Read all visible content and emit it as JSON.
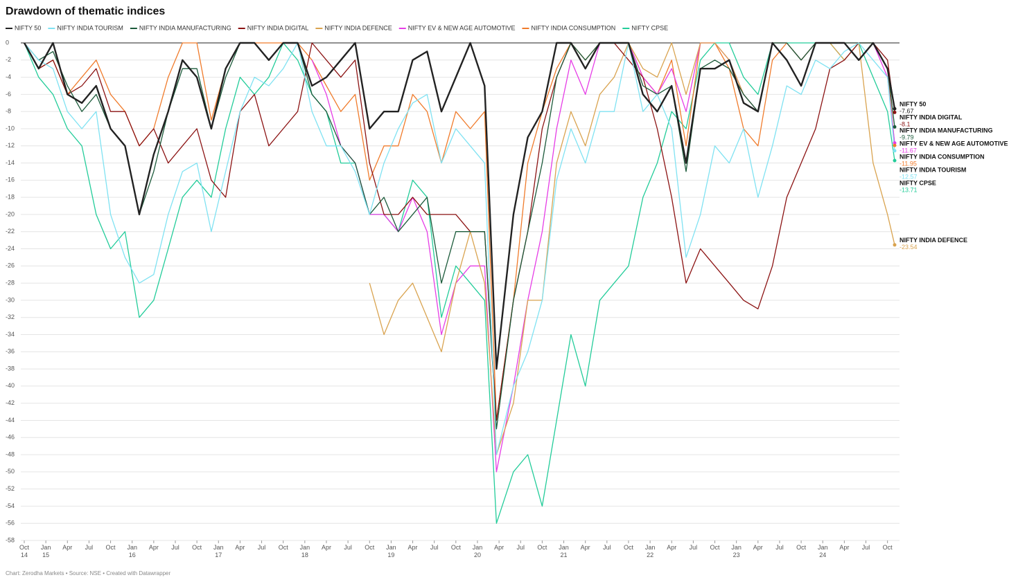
{
  "chart_data": {
    "type": "line",
    "title": "Drawdown of thematic indices",
    "footer": "Chart: Zerodha Markets • Source: NSE • Created with Datawrapper",
    "x": [
      2014.75,
      2014.917,
      2015.083,
      2015.25,
      2015.417,
      2015.583,
      2015.75,
      2015.917,
      2016.083,
      2016.25,
      2016.417,
      2016.583,
      2016.75,
      2016.917,
      2017.083,
      2017.25,
      2017.417,
      2017.583,
      2017.75,
      2017.917,
      2018.083,
      2018.25,
      2018.417,
      2018.583,
      2018.75,
      2018.917,
      2019.083,
      2019.25,
      2019.417,
      2019.583,
      2019.75,
      2019.917,
      2020.083,
      2020.22,
      2020.417,
      2020.583,
      2020.75,
      2020.917,
      2021.083,
      2021.25,
      2021.417,
      2021.583,
      2021.75,
      2021.917,
      2022.083,
      2022.25,
      2022.417,
      2022.583,
      2022.75,
      2022.917,
      2023.083,
      2023.25,
      2023.417,
      2023.583,
      2023.75,
      2023.917,
      2024.083,
      2024.25,
      2024.417,
      2024.583,
      2024.75,
      2024.833
    ],
    "series": [
      {
        "name": "NIFTY 50",
        "color": "#222222",
        "values": [
          0,
          -3,
          0,
          -6,
          -7,
          -5,
          -10,
          -12,
          -20,
          -13,
          -8,
          -2,
          -4,
          -10,
          -3,
          0,
          0,
          -2,
          0,
          0,
          -5,
          -4,
          -2,
          0,
          -10,
          -8,
          -8,
          -2,
          -1,
          -8,
          -4,
          0,
          -5,
          -38,
          -20,
          -11,
          -8,
          0,
          0,
          -3,
          0,
          0,
          0,
          -6,
          -8,
          -5,
          -14,
          -3,
          -3,
          -2,
          -7,
          -8,
          0,
          -2,
          -5,
          0,
          0,
          0,
          -2,
          0,
          -3,
          -7.67
        ]
      },
      {
        "name": "NIFTY INDIA TOURISM",
        "color": "#7fe2f2",
        "values": [
          0,
          -2,
          -3,
          -8,
          -10,
          -8,
          -20,
          -25,
          -28,
          -27,
          -20,
          -15,
          -14,
          -22,
          -15,
          -8,
          -4,
          -5,
          -3,
          0,
          -8,
          -12,
          -12,
          -15,
          -20,
          -14,
          -10,
          -7,
          -6,
          -14,
          -10,
          -12,
          -14,
          -48,
          -40,
          -36,
          -30,
          -16,
          -10,
          -14,
          -8,
          -8,
          0,
          -8,
          -6,
          -10,
          -25,
          -20,
          -12,
          -14,
          -10,
          -18,
          -12,
          -5,
          -6,
          -2,
          -3,
          -1,
          0,
          -2,
          -4,
          -12.57
        ]
      },
      {
        "name": "NIFTY INDIA MANUFACTURING",
        "color": "#1b5a3a",
        "values": [
          0,
          -2,
          -1,
          -5,
          -8,
          -6,
          -10,
          -12,
          -20,
          -15,
          -8,
          -3,
          -3,
          -10,
          -4,
          0,
          0,
          -2,
          0,
          0,
          -6,
          -8,
          -12,
          -14,
          -20,
          -18,
          -22,
          -20,
          -18,
          -28,
          -22,
          -22,
          -22,
          -45,
          -30,
          -22,
          -14,
          -4,
          0,
          -2,
          0,
          0,
          0,
          -5,
          -6,
          -5,
          -15,
          -3,
          -2,
          -3,
          -6,
          -8,
          0,
          0,
          -2,
          0,
          0,
          0,
          0,
          0,
          -3,
          -9.79
        ]
      },
      {
        "name": "NIFTY INDIA DIGITAL",
        "color": "#8b1212",
        "values": [
          0,
          -3,
          -2,
          -6,
          -5,
          -3,
          -8,
          -8,
          -12,
          -10,
          -14,
          -12,
          -10,
          -16,
          -18,
          -8,
          -6,
          -12,
          -10,
          -8,
          0,
          -2,
          -4,
          -2,
          -14,
          -20,
          -20,
          -18,
          -20,
          -20,
          -20,
          -22,
          -22,
          -44,
          -30,
          -22,
          -10,
          -4,
          0,
          -3,
          0,
          0,
          -2,
          -4,
          -10,
          -18,
          -28,
          -24,
          -26,
          -28,
          -30,
          -31,
          -26,
          -18,
          -14,
          -10,
          -3,
          -2,
          0,
          0,
          -2,
          -8.1
        ]
      },
      {
        "name": "NIFTY INDIA DEFENCE",
        "color": "#d9a34f",
        "values": [
          null,
          null,
          null,
          null,
          null,
          null,
          null,
          null,
          null,
          null,
          null,
          null,
          null,
          null,
          null,
          null,
          null,
          null,
          null,
          null,
          null,
          null,
          null,
          null,
          -28,
          -34,
          -30,
          -28,
          -32,
          -36,
          -28,
          -22,
          -28,
          -48,
          -42,
          -30,
          -30,
          -14,
          -8,
          -12,
          -6,
          -4,
          0,
          -3,
          -4,
          0,
          -6,
          0,
          0,
          -2,
          -6,
          -8,
          0,
          0,
          -2,
          0,
          0,
          -2,
          0,
          -14,
          -20,
          -23.54
        ]
      },
      {
        "name": "NIFTY EV & NEW AGE AUTOMOTIVE",
        "color": "#e63ce6",
        "values": [
          null,
          null,
          null,
          null,
          null,
          null,
          null,
          null,
          null,
          null,
          null,
          null,
          null,
          null,
          null,
          null,
          null,
          null,
          null,
          null,
          -2,
          -6,
          -12,
          -14,
          -20,
          -20,
          -22,
          -18,
          -22,
          -34,
          -28,
          -26,
          -26,
          -50,
          -40,
          -30,
          -22,
          -10,
          -2,
          -6,
          0,
          0,
          0,
          -4,
          -6,
          -3,
          -8,
          0,
          0,
          -2,
          -6,
          -8,
          0,
          0,
          -2,
          0,
          0,
          0,
          0,
          0,
          -4,
          -11.67
        ]
      },
      {
        "name": "NIFTY INDIA CONSUMPTION",
        "color": "#f07b2b",
        "values": [
          0,
          -3,
          -2,
          -6,
          -4,
          -2,
          -6,
          -8,
          -12,
          -10,
          -4,
          0,
          0,
          -9,
          -3,
          0,
          0,
          0,
          0,
          0,
          -2,
          -5,
          -8,
          -6,
          -16,
          -12,
          -12,
          -6,
          -8,
          -14,
          -8,
          -10,
          -8,
          -44,
          -30,
          -14,
          -8,
          -3,
          0,
          -2,
          0,
          0,
          0,
          -4,
          -6,
          -2,
          -12,
          0,
          0,
          -3,
          -10,
          -12,
          -2,
          0,
          -2,
          0,
          0,
          0,
          0,
          0,
          -3,
          -11.95
        ]
      },
      {
        "name": "NIFTY CPSE",
        "color": "#22cc99",
        "values": [
          0,
          -4,
          -6,
          -10,
          -12,
          -20,
          -24,
          -22,
          -32,
          -30,
          -24,
          -18,
          -16,
          -18,
          -10,
          -4,
          -6,
          -4,
          0,
          -2,
          -6,
          -8,
          -14,
          -14,
          -20,
          -20,
          -22,
          -16,
          -18,
          -32,
          -26,
          -28,
          -30,
          -56,
          -50,
          -48,
          -54,
          -44,
          -34,
          -40,
          -30,
          -28,
          -26,
          -18,
          -14,
          -8,
          -10,
          -2,
          0,
          0,
          -4,
          -6,
          0,
          0,
          0,
          0,
          0,
          -2,
          0,
          -4,
          -8,
          -13.71
        ]
      }
    ],
    "ylim": [
      -58,
      0
    ],
    "yticks": [
      0,
      -2,
      -4,
      -6,
      -8,
      -10,
      -12,
      -14,
      -16,
      -18,
      -20,
      -22,
      -24,
      -26,
      -28,
      -30,
      -32,
      -34,
      -36,
      -38,
      -40,
      -42,
      -44,
      -46,
      -48,
      -50,
      -52,
      -54,
      -56,
      -58
    ],
    "xlim": [
      2014.75,
      2024.833
    ],
    "xticks": [
      {
        "value": 2014.75,
        "label": "Oct 14"
      },
      {
        "value": 2015,
        "label": "Jan 15"
      },
      {
        "value": 2015.25,
        "label": "Apr"
      },
      {
        "value": 2015.5,
        "label": "Jul"
      },
      {
        "value": 2015.75,
        "label": "Oct"
      },
      {
        "value": 2016,
        "label": "Jan 16"
      },
      {
        "value": 2016.25,
        "label": "Apr"
      },
      {
        "value": 2016.5,
        "label": "Jul"
      },
      {
        "value": 2016.75,
        "label": "Oct"
      },
      {
        "value": 2017,
        "label": "Jan 17"
      },
      {
        "value": 2017.25,
        "label": "Apr"
      },
      {
        "value": 2017.5,
        "label": "Jul"
      },
      {
        "value": 2017.75,
        "label": "Oct"
      },
      {
        "value": 2018,
        "label": "Jan 18"
      },
      {
        "value": 2018.25,
        "label": "Apr"
      },
      {
        "value": 2018.5,
        "label": "Jul"
      },
      {
        "value": 2018.75,
        "label": "Oct"
      },
      {
        "value": 2019,
        "label": "Jan 19"
      },
      {
        "value": 2019.25,
        "label": "Apr"
      },
      {
        "value": 2019.5,
        "label": "Jul"
      },
      {
        "value": 2019.75,
        "label": "Oct"
      },
      {
        "value": 2020,
        "label": "Jan 20"
      },
      {
        "value": 2020.25,
        "label": "Apr"
      },
      {
        "value": 2020.5,
        "label": "Jul"
      },
      {
        "value": 2020.75,
        "label": "Oct"
      },
      {
        "value": 2021,
        "label": "Jan 21"
      },
      {
        "value": 2021.25,
        "label": "Apr"
      },
      {
        "value": 2021.5,
        "label": "Jul"
      },
      {
        "value": 2021.75,
        "label": "Oct"
      },
      {
        "value": 2022,
        "label": "Jan 22"
      },
      {
        "value": 2022.25,
        "label": "Apr"
      },
      {
        "value": 2022.5,
        "label": "Jul"
      },
      {
        "value": 2022.75,
        "label": "Oct"
      },
      {
        "value": 2023,
        "label": "Jan 23"
      },
      {
        "value": 2023.25,
        "label": "Apr"
      },
      {
        "value": 2023.5,
        "label": "Jul"
      },
      {
        "value": 2023.75,
        "label": "Oct"
      },
      {
        "value": 2024,
        "label": "Jan 24"
      },
      {
        "value": 2024.25,
        "label": "Apr"
      },
      {
        "value": 2024.5,
        "label": "Jul"
      },
      {
        "value": 2024.75,
        "label": "Oct"
      }
    ],
    "grid": true
  }
}
